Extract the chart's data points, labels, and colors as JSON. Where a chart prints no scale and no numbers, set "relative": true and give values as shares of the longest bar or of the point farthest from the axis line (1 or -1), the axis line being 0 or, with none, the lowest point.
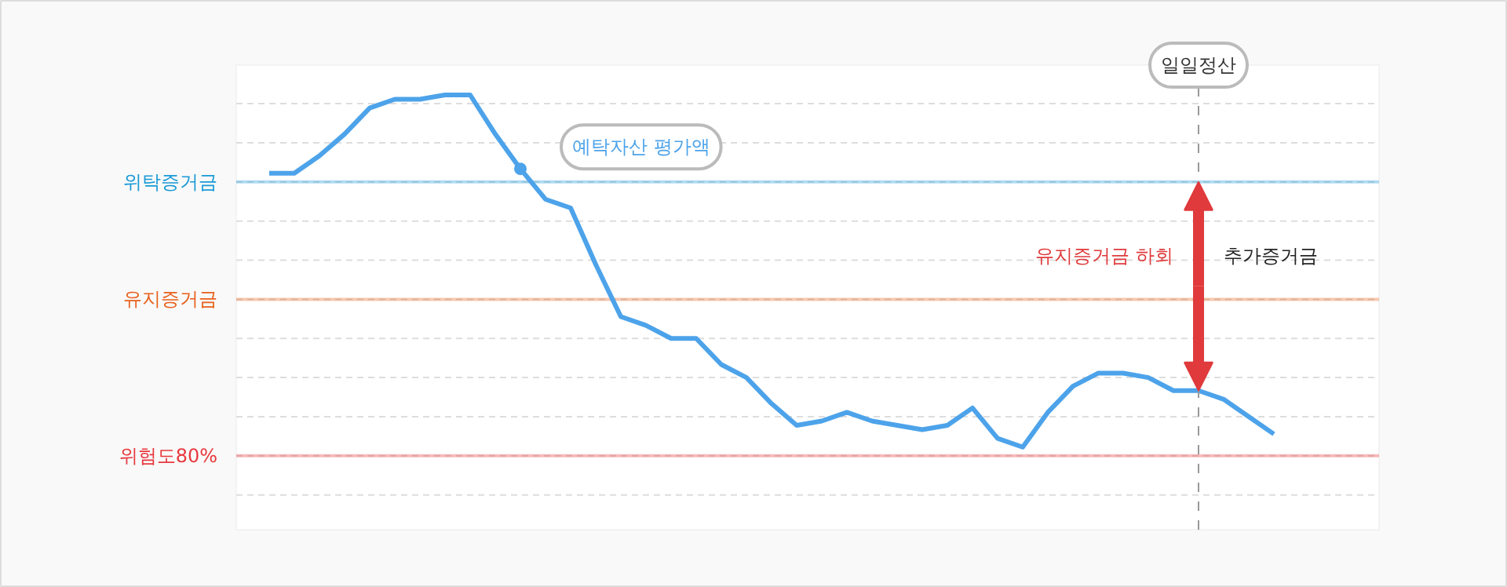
{
  "chart_data": {
    "type": "line",
    "relative": true,
    "categories": [
      null,
      null,
      null,
      null,
      null,
      null,
      null,
      null,
      null,
      null,
      null,
      null,
      null,
      null,
      null,
      null,
      null,
      null,
      null,
      null,
      null,
      null,
      null,
      null,
      null,
      null,
      null,
      null,
      null,
      null,
      null,
      null,
      null,
      null,
      null,
      null,
      null,
      null,
      null,
      null,
      null
    ],
    "series": [
      {
        "name": "예탁자산 평가액",
        "color": "#4da3ea",
        "values": [
          0.82,
          0.82,
          0.86,
          0.91,
          0.97,
          0.99,
          0.99,
          1.0,
          1.0,
          0.91,
          0.83,
          0.76,
          0.74,
          0.61,
          0.49,
          0.47,
          0.44,
          0.44,
          0.38,
          0.35,
          0.29,
          0.24,
          0.25,
          0.27,
          0.25,
          0.24,
          0.23,
          0.24,
          0.28,
          0.21,
          0.19,
          0.27,
          0.33,
          0.36,
          0.36,
          0.35,
          0.32,
          0.32,
          0.3,
          0.26,
          0.22
        ]
      }
    ],
    "ref_lines": [
      {
        "axis": "y",
        "value": 0.8,
        "label": "위탁증거금",
        "color": "#1a9ad6"
      },
      {
        "axis": "y",
        "value": 0.53,
        "label": "유지증거금",
        "color": "#e8601c"
      },
      {
        "axis": "y",
        "value": 0.17,
        "label": "위험도80%",
        "color": "#e8383d"
      }
    ],
    "annotations": [
      "일일정산",
      "유지증거금 하회",
      "추가증거금"
    ],
    "grid": "y",
    "marker": "none",
    "line_style": "solid"
  }
}
